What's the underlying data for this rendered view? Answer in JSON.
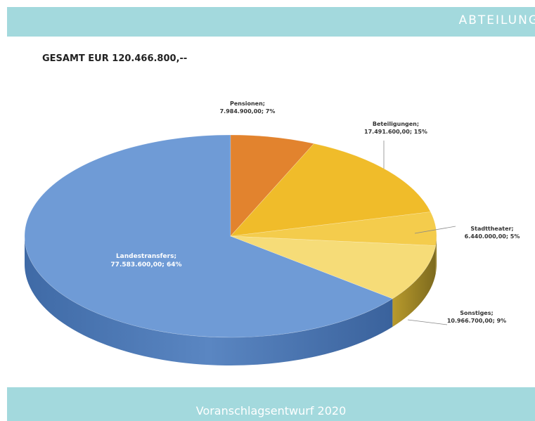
{
  "header": {
    "title": "ABTEILUNG"
  },
  "footer": {
    "text": "Voranschlagsentwurf 2020"
  },
  "total_label": "GESAMT EUR 120.466.800,--",
  "colors": {
    "band": "#a3d9dd",
    "Landestransfers": "#6f9bd6",
    "Pensionen": "#e2832e",
    "Beteiligungen": "#f0bc2a",
    "Stadttheater": "#f4cc4c",
    "Sonstiges": "#f6dc78"
  },
  "chart_data": {
    "type": "pie",
    "title": "",
    "total": "GESAMT EUR 120.466.800,--",
    "slices": [
      {
        "label": "Landestransfers",
        "value": 77583600,
        "value_text": "77.583.600,00",
        "percent": 64
      },
      {
        "label": "Pensionen",
        "value": 7984900,
        "value_text": "7.984.900,00",
        "percent": 7
      },
      {
        "label": "Beteiligungen",
        "value": 17491600,
        "value_text": "17.491.600,00",
        "percent": 15
      },
      {
        "label": "Stadttheater",
        "value": 6440000,
        "value_text": "6.440.000,00",
        "percent": 5
      },
      {
        "label": "Sonstiges",
        "value": 10966700,
        "value_text": "10.966.700,00",
        "percent": 9
      }
    ]
  }
}
